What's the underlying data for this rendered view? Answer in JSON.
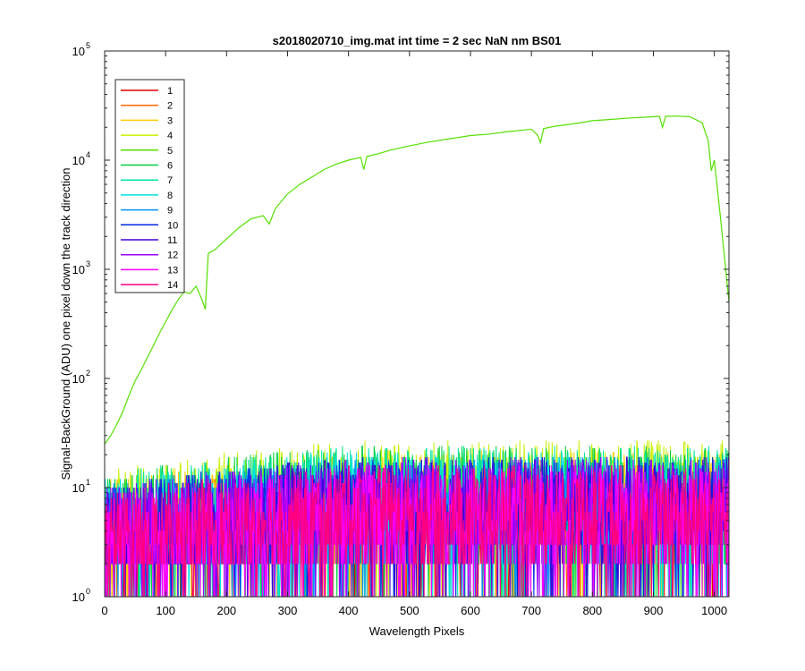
{
  "chart_data": {
    "type": "line",
    "title": "s2018020710_img.mat int time = 2 sec  NaN nm BS01",
    "xlabel": "Wavelength Pixels",
    "ylabel": "Signal-BackGround (ADU) one pixel down the track direction",
    "xlim": [
      0,
      1024
    ],
    "ylim": [
      1,
      100000
    ],
    "yscale": "log",
    "grid": false,
    "legend_position": "top-left",
    "xticks": [
      0,
      100,
      200,
      300,
      400,
      500,
      600,
      700,
      800,
      900,
      1000
    ],
    "xtick_labels": [
      "0",
      "100",
      "200",
      "300",
      "400",
      "500",
      "600",
      "700",
      "800",
      "900",
      "1000"
    ],
    "yticks": [
      1,
      10,
      100,
      1000,
      10000,
      100000
    ],
    "ytick_bases": [
      "10",
      "10",
      "10",
      "10",
      "10",
      "10"
    ],
    "ytick_exponents": [
      "0",
      "1",
      "2",
      "3",
      "4",
      "5"
    ],
    "signal_series_index": 4,
    "signal_series": {
      "x": [
        0,
        10,
        20,
        30,
        40,
        50,
        60,
        70,
        80,
        90,
        100,
        110,
        120,
        130,
        140,
        150,
        160,
        165,
        170,
        180,
        200,
        220,
        240,
        260,
        270,
        280,
        300,
        320,
        340,
        360,
        380,
        400,
        420,
        425,
        430,
        450,
        470,
        500,
        530,
        560,
        600,
        630,
        660,
        700,
        710,
        715,
        720,
        740,
        780,
        800,
        830,
        860,
        890,
        910,
        915,
        920,
        940,
        960,
        980,
        990,
        995,
        1000,
        1010,
        1024
      ],
      "values": [
        25,
        30,
        38,
        50,
        70,
        95,
        120,
        155,
        200,
        260,
        330,
        420,
        520,
        620,
        600,
        700,
        520,
        430,
        1400,
        1500,
        1900,
        2400,
        2900,
        3100,
        2600,
        3600,
        4900,
        6000,
        7000,
        8200,
        9200,
        10000,
        10600,
        8200,
        10800,
        11500,
        12400,
        13500,
        14600,
        15500,
        16800,
        17300,
        18200,
        19200,
        17000,
        14500,
        19500,
        20500,
        22000,
        23000,
        23600,
        24300,
        24800,
        25200,
        20000,
        25200,
        25300,
        25000,
        22000,
        15000,
        8000,
        10000,
        3000,
        500
      ]
    },
    "series": [
      {
        "name": "1",
        "color": "#e00000",
        "level": 6
      },
      {
        "name": "2",
        "color": "#ff6600",
        "level": 6
      },
      {
        "name": "3",
        "color": "#ffcc00",
        "level": 8
      },
      {
        "name": "4",
        "color": "#c8f000",
        "level": 10
      },
      {
        "name": "5",
        "color": "#55e000",
        "level": 0
      },
      {
        "name": "6",
        "color": "#00d040",
        "level": 9
      },
      {
        "name": "7",
        "color": "#00e6a0",
        "level": 9
      },
      {
        "name": "8",
        "color": "#00e0e0",
        "level": 8
      },
      {
        "name": "9",
        "color": "#0090ff",
        "level": 7
      },
      {
        "name": "10",
        "color": "#0028e0",
        "level": 7
      },
      {
        "name": "11",
        "color": "#4400d8",
        "level": 7
      },
      {
        "name": "12",
        "color": "#9a00ff",
        "level": 7
      },
      {
        "name": "13",
        "color": "#ff00ff",
        "level": 6
      },
      {
        "name": "14",
        "color": "#ff0080",
        "level": 6
      }
    ]
  }
}
